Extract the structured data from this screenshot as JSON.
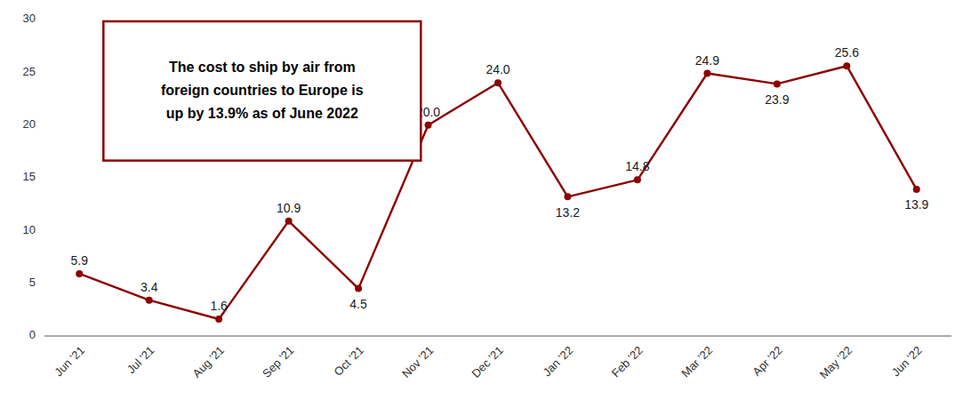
{
  "chart_data": {
    "type": "line",
    "categories": [
      "Jun '21",
      "Jul '21",
      "Aug '21",
      "Sep '21",
      "Oct '21",
      "Nov '21",
      "Dec '21",
      "Jan '22",
      "Feb '22",
      "Mar '22",
      "Apr '22",
      "May '22",
      "Jun '22"
    ],
    "values": [
      5.9,
      3.4,
      1.6,
      10.9,
      4.5,
      20.0,
      24.0,
      13.2,
      14.8,
      24.9,
      23.9,
      25.6,
      13.9
    ],
    "value_labels": [
      "5.9",
      "3.4",
      "1.6",
      "10.9",
      "4.5",
      "20.0",
      "24.0",
      "13.2",
      "14.8",
      "24.9",
      "23.9",
      "25.6",
      "13.9"
    ],
    "color": "#8B0000",
    "marker": "circle",
    "ylim": [
      0,
      30
    ],
    "yticks": [
      0,
      5,
      10,
      15,
      20,
      25,
      30
    ],
    "grid": false,
    "data_labels": true,
    "annotation": [
      "The cost to ship by air from",
      "foreign countries to Europe is",
      "up by 13.9% as of June 2022"
    ]
  }
}
